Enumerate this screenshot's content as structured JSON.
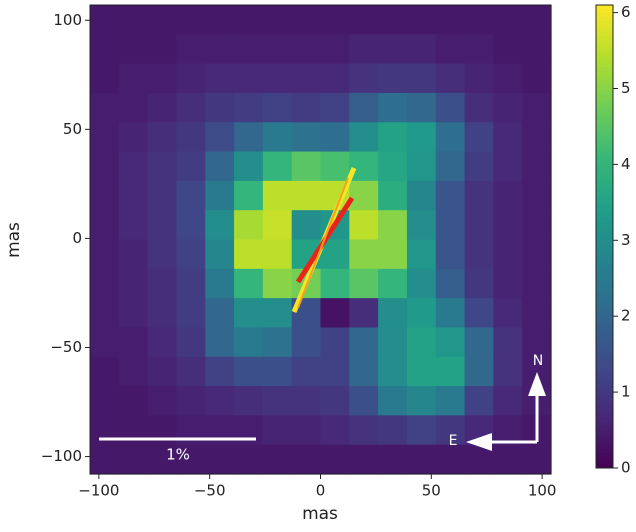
{
  "chart_data": {
    "type": "heatmap",
    "xlabel": "mas",
    "ylabel": "mas",
    "xlim": [
      -104,
      104
    ],
    "ylim": [
      -108,
      107
    ],
    "xticks": [
      {
        "value": -100,
        "label": "−100"
      },
      {
        "value": -50,
        "label": "−50"
      },
      0,
      50,
      100
    ],
    "yticks": [
      {
        "value": -100,
        "label": "−100"
      },
      {
        "value": -50,
        "label": "−50"
      },
      0,
      50,
      100
    ],
    "colormap": "viridis",
    "clim": [
      0,
      6.1
    ],
    "cticks": [
      0,
      1,
      2,
      3,
      4,
      5,
      6
    ],
    "z": [
      [
        0.4,
        0.4,
        0.4,
        0.4,
        0.4,
        0.4,
        0.4,
        0.4,
        0.4,
        0.4,
        0.4,
        0.4,
        0.4,
        0.4,
        0.4,
        0.4
      ],
      [
        0.4,
        0.4,
        0.4,
        0.5,
        0.5,
        0.5,
        0.5,
        0.5,
        0.5,
        0.6,
        0.6,
        0.6,
        0.5,
        0.5,
        0.4,
        0.4
      ],
      [
        0.4,
        0.5,
        0.5,
        0.6,
        0.7,
        0.7,
        0.7,
        0.7,
        0.7,
        0.9,
        1.0,
        1.0,
        0.8,
        0.6,
        0.5,
        0.4
      ],
      [
        0.5,
        0.5,
        0.6,
        0.8,
        1.0,
        1.1,
        1.2,
        1.1,
        1.2,
        1.8,
        2.2,
        2.0,
        1.5,
        0.8,
        0.6,
        0.5
      ],
      [
        0.5,
        0.6,
        0.8,
        1.0,
        1.4,
        2.0,
        2.5,
        2.3,
        2.2,
        3.0,
        3.5,
        3.3,
        2.2,
        1.2,
        0.7,
        0.5
      ],
      [
        0.5,
        0.7,
        0.9,
        1.1,
        2.0,
        3.0,
        4.0,
        4.5,
        4.3,
        4.0,
        3.6,
        3.2,
        2.0,
        1.1,
        0.7,
        0.5
      ],
      [
        0.5,
        0.7,
        0.9,
        1.3,
        2.5,
        4.0,
        5.5,
        5.5,
        5.5,
        5.0,
        3.8,
        2.8,
        1.6,
        0.9,
        0.6,
        0.5
      ],
      [
        0.5,
        0.7,
        0.9,
        1.3,
        3.0,
        5.3,
        5.6,
        3.0,
        3.2,
        5.5,
        5.0,
        3.0,
        1.6,
        0.9,
        0.6,
        0.5
      ],
      [
        0.5,
        0.6,
        0.9,
        1.2,
        2.8,
        5.5,
        5.5,
        3.5,
        3.5,
        5.0,
        5.0,
        3.2,
        1.6,
        0.9,
        0.6,
        0.5
      ],
      [
        0.5,
        0.6,
        0.8,
        1.1,
        2.5,
        4.0,
        5.0,
        4.8,
        4.0,
        4.5,
        4.0,
        3.0,
        1.8,
        1.0,
        0.6,
        0.5
      ],
      [
        0.5,
        0.6,
        0.8,
        1.1,
        2.0,
        3.0,
        3.0,
        1.5,
        0.3,
        0.8,
        3.0,
        3.3,
        2.5,
        1.3,
        0.7,
        0.5
      ],
      [
        0.5,
        0.5,
        0.7,
        1.0,
        2.0,
        2.5,
        2.3,
        1.5,
        1.2,
        2.0,
        3.0,
        3.5,
        3.2,
        2.0,
        0.9,
        0.5
      ],
      [
        0.4,
        0.5,
        0.6,
        0.8,
        1.2,
        1.5,
        1.5,
        1.2,
        1.2,
        2.0,
        3.0,
        3.5,
        3.5,
        2.0,
        0.9,
        0.5
      ],
      [
        0.4,
        0.4,
        0.5,
        0.6,
        0.7,
        0.8,
        0.9,
        0.9,
        1.0,
        1.5,
        2.5,
        2.8,
        2.5,
        1.2,
        0.7,
        0.5
      ],
      [
        0.4,
        0.4,
        0.4,
        0.5,
        0.5,
        0.5,
        0.6,
        0.6,
        0.7,
        0.9,
        1.0,
        1.2,
        1.0,
        0.7,
        0.5,
        0.4
      ],
      [
        0.4,
        0.4,
        0.4,
        0.4,
        0.4,
        0.4,
        0.4,
        0.4,
        0.4,
        0.4,
        0.4,
        0.4,
        0.4,
        0.4,
        0.4,
        0.4
      ]
    ],
    "annotations": {
      "scale_bar": "1%",
      "north": "N",
      "east": "E"
    }
  }
}
